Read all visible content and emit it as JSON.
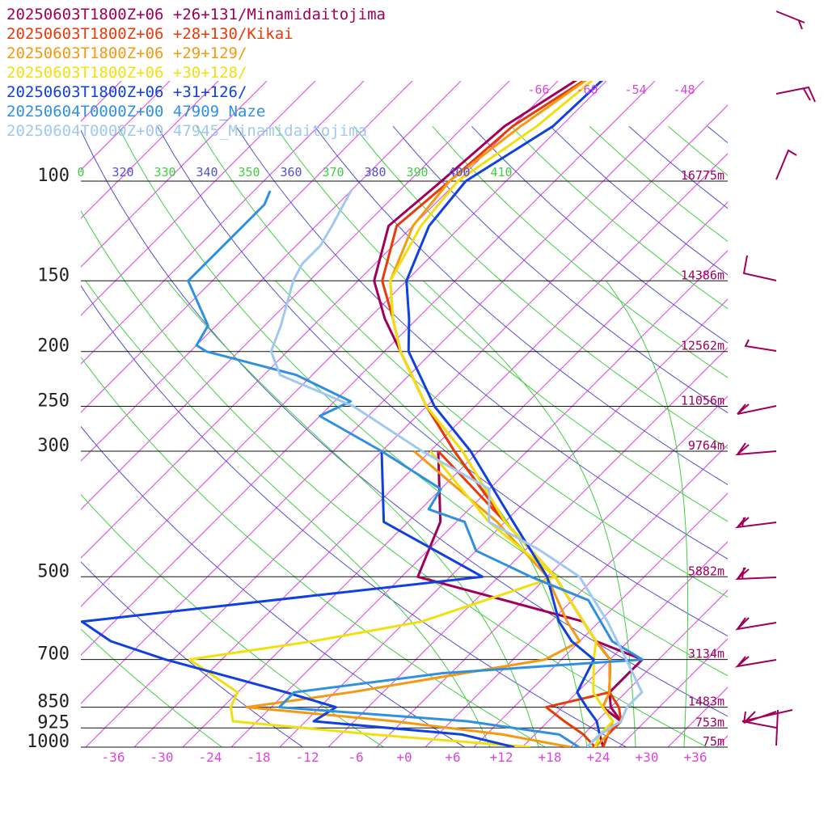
{
  "chart_data": {
    "type": "line",
    "title": "",
    "legend": [
      {
        "label": "20250603T1800Z+06 +26+131/Minamidaitojima",
        "color": "#a0005a"
      },
      {
        "label": "20250603T1800Z+06 +28+130/Kikai",
        "color": "#e83a0a"
      },
      {
        "label": "20250603T1800Z+06 +29+129/",
        "color": "#f59a10"
      },
      {
        "label": "20250603T1800Z+06 +30+128/",
        "color": "#f0e010"
      },
      {
        "label": "20250603T1800Z+06 +31+126/",
        "color": "#1040e0"
      },
      {
        "label": "20250604T0000Z+00 47909_Naze",
        "color": "#3090e0"
      },
      {
        "label": "20250604T0000Z+00 47945_Minamidaitojima",
        "color": "#a0c8f0"
      }
    ],
    "pressure_levels": [
      100,
      150,
      200,
      250,
      300,
      500,
      700,
      850,
      925,
      1000
    ],
    "pressure_labels": [
      "100",
      "150",
      "200",
      "250",
      "300",
      "500",
      "700",
      "850",
      "925",
      "1000"
    ],
    "height_labels": [
      {
        "p": 100,
        "label": "16775m"
      },
      {
        "p": 150,
        "label": "14386m"
      },
      {
        "p": 200,
        "label": "12562m"
      },
      {
        "p": 250,
        "label": "11056m"
      },
      {
        "p": 300,
        "label": "9764m"
      },
      {
        "p": 500,
        "label": "5882m"
      },
      {
        "p": 700,
        "label": "3134m"
      },
      {
        "p": 850,
        "label": "1483m"
      },
      {
        "p": 925,
        "label": "753m"
      },
      {
        "p": 1000,
        "label": "75m"
      }
    ],
    "x_ticks": [
      -36,
      -30,
      -24,
      -18,
      -12,
      -6,
      0,
      6,
      12,
      18,
      24,
      30,
      36
    ],
    "x_tick_labels": [
      "-36",
      "-30",
      "-24",
      "-18",
      "-12",
      "-6",
      "+0",
      "+6",
      "+12",
      "+18",
      "+24",
      "+30",
      "+36"
    ],
    "upper_isotherm_labels": [
      "-66",
      "-60",
      "-54",
      "-48"
    ],
    "theta_labels": [
      {
        "value": "0",
        "color": "#40d040"
      },
      {
        "value": "320",
        "color": "#5050d0"
      },
      {
        "value": "330",
        "color": "#40d040"
      },
      {
        "value": "340",
        "color": "#5050d0"
      },
      {
        "value": "350",
        "color": "#40d040"
      },
      {
        "value": "360",
        "color": "#5050d0"
      },
      {
        "value": "370",
        "color": "#40d040"
      },
      {
        "value": "380",
        "color": "#5050d0"
      },
      {
        "value": "390",
        "color": "#40d040"
      },
      {
        "value": "400",
        "color": "#5050d0"
      },
      {
        "value": "410",
        "color": "#40d040"
      }
    ],
    "series": [
      {
        "color": "#a0005a",
        "temperature": [
          [
            50,
            -57
          ],
          [
            80,
            -65
          ],
          [
            100,
            -66
          ],
          [
            120,
            -67
          ],
          [
            150,
            -62
          ],
          [
            175,
            -56
          ],
          [
            200,
            -50
          ],
          [
            250,
            -40
          ],
          [
            300,
            -31
          ],
          [
            400,
            -16
          ],
          [
            500,
            -3
          ],
          [
            600,
            6
          ],
          [
            650,
            10
          ],
          [
            700,
            14
          ],
          [
            800,
            18
          ],
          [
            850,
            20
          ],
          [
            900,
            23
          ],
          [
            950,
            23
          ],
          [
            1000,
            24
          ]
        ],
        "dewpoint": [
          [
            300,
            -33
          ],
          [
            400,
            -24
          ],
          [
            500,
            -20
          ],
          [
            600,
            6
          ],
          [
            650,
            10
          ],
          [
            700,
            18
          ],
          [
            800,
            18
          ],
          [
            850,
            19
          ],
          [
            900,
            23
          ],
          [
            950,
            22
          ],
          [
            1000,
            24
          ]
        ]
      },
      {
        "color": "#e83a0a",
        "temperature": [
          [
            50,
            -56
          ],
          [
            80,
            -64
          ],
          [
            100,
            -65
          ],
          [
            120,
            -66
          ],
          [
            150,
            -61
          ],
          [
            175,
            -55
          ],
          [
            200,
            -50
          ],
          [
            250,
            -40
          ],
          [
            300,
            -31
          ],
          [
            400,
            -16
          ],
          [
            500,
            -3
          ],
          [
            600,
            6
          ],
          [
            650,
            10
          ],
          [
            700,
            14
          ],
          [
            800,
            18
          ],
          [
            850,
            21
          ],
          [
            900,
            23
          ],
          [
            950,
            23
          ],
          [
            1000,
            24
          ]
        ],
        "dewpoint": [
          [
            300,
            -33
          ],
          [
            400,
            -16
          ],
          [
            500,
            -3
          ],
          [
            600,
            6
          ],
          [
            650,
            10
          ],
          [
            700,
            14
          ],
          [
            800,
            18
          ],
          [
            850,
            12
          ],
          [
            900,
            16
          ],
          [
            950,
            20
          ],
          [
            1000,
            23
          ]
        ]
      },
      {
        "color": "#f59a10",
        "temperature": [
          [
            50,
            -57
          ],
          [
            80,
            -63
          ],
          [
            100,
            -65
          ],
          [
            120,
            -64
          ],
          [
            150,
            -60
          ],
          [
            175,
            -55
          ],
          [
            200,
            -50
          ],
          [
            250,
            -40
          ],
          [
            300,
            -30
          ],
          [
            400,
            -16
          ],
          [
            500,
            -3
          ],
          [
            600,
            6
          ],
          [
            650,
            10
          ],
          [
            700,
            14
          ],
          [
            800,
            18
          ],
          [
            850,
            19
          ],
          [
            900,
            22
          ],
          [
            950,
            23
          ],
          [
            1000,
            23
          ]
        ],
        "dewpoint": [
          [
            300,
            -36
          ],
          [
            400,
            -17
          ],
          [
            500,
            -4
          ],
          [
            600,
            4
          ],
          [
            650,
            8
          ],
          [
            700,
            6
          ],
          [
            800,
            -14
          ],
          [
            850,
            -25
          ],
          [
            900,
            -5
          ],
          [
            950,
            10
          ],
          [
            1000,
            20
          ]
        ]
      },
      {
        "color": "#f0e010",
        "temperature": [
          [
            50,
            -58
          ],
          [
            80,
            -61
          ],
          [
            100,
            -64
          ],
          [
            120,
            -63
          ],
          [
            150,
            -60
          ],
          [
            175,
            -55
          ],
          [
            200,
            -50
          ],
          [
            250,
            -40
          ],
          [
            300,
            -30
          ],
          [
            400,
            -16
          ],
          [
            500,
            -3
          ],
          [
            600,
            6
          ],
          [
            650,
            10
          ],
          [
            700,
            12
          ],
          [
            800,
            16
          ],
          [
            850,
            19
          ],
          [
            900,
            22
          ],
          [
            950,
            22
          ],
          [
            1000,
            23
          ]
        ],
        "dewpoint": [
          [
            300,
            -34
          ],
          [
            400,
            -18
          ],
          [
            500,
            -3
          ],
          [
            600,
            -14
          ],
          [
            650,
            -25
          ],
          [
            700,
            -38
          ],
          [
            800,
            -28
          ],
          [
            850,
            -27
          ],
          [
            900,
            -25
          ],
          [
            950,
            -6
          ],
          [
            1000,
            15
          ]
        ]
      },
      {
        "color": "#1040e0",
        "temperature": [
          [
            50,
            -58
          ],
          [
            80,
            -59
          ],
          [
            100,
            -63
          ],
          [
            120,
            -62
          ],
          [
            150,
            -58
          ],
          [
            175,
            -53
          ],
          [
            200,
            -49
          ],
          [
            250,
            -39
          ],
          [
            300,
            -29
          ],
          [
            400,
            -15
          ],
          [
            500,
            -4
          ],
          [
            600,
            3
          ],
          [
            650,
            7
          ],
          [
            700,
            12
          ],
          [
            800,
            14
          ],
          [
            850,
            17
          ],
          [
            900,
            20
          ],
          [
            950,
            22
          ],
          [
            1000,
            22
          ]
        ],
        "dewpoint": [
          [
            300,
            -40
          ],
          [
            400,
            -31
          ],
          [
            500,
            -12
          ],
          [
            600,
            -56
          ],
          [
            650,
            -50
          ],
          [
            700,
            -41
          ],
          [
            800,
            -22
          ],
          [
            850,
            -14
          ],
          [
            900,
            -15
          ],
          [
            950,
            5
          ],
          [
            1000,
            13
          ]
        ]
      },
      {
        "color": "#3090e0",
        "temperature": [
          [
            104,
            -86
          ],
          [
            110,
            -85
          ],
          [
            120,
            -85
          ],
          [
            150,
            -85
          ],
          [
            180,
            -77
          ],
          [
            195,
            -76
          ],
          [
            200,
            -74
          ],
          [
            220,
            -60
          ],
          [
            245,
            -50
          ],
          [
            260,
            -52
          ],
          [
            300,
            -40
          ],
          [
            350,
            -28
          ],
          [
            380,
            -27
          ],
          [
            400,
            -21
          ],
          [
            450,
            -16
          ],
          [
            500,
            -6
          ],
          [
            550,
            4
          ],
          [
            650,
            12
          ],
          [
            700,
            18
          ],
          [
            740,
            -5
          ],
          [
            800,
            -21
          ],
          [
            830,
            -21
          ],
          [
            850,
            -21
          ],
          [
            900,
            4
          ],
          [
            950,
            17
          ],
          [
            1000,
            21
          ]
        ],
        "dewpoint": []
      },
      {
        "color": "#a0c8f0",
        "temperature": [
          [
            104,
            -76
          ],
          [
            120,
            -74
          ],
          [
            130,
            -73
          ],
          [
            140,
            -73
          ],
          [
            150,
            -72
          ],
          [
            180,
            -68
          ],
          [
            200,
            -66
          ],
          [
            220,
            -62
          ],
          [
            250,
            -49
          ],
          [
            300,
            -35
          ],
          [
            350,
            -22
          ],
          [
            400,
            -18
          ],
          [
            450,
            -8
          ],
          [
            500,
            0
          ],
          [
            600,
            9
          ],
          [
            700,
            16
          ],
          [
            800,
            22
          ],
          [
            850,
            22
          ],
          [
            900,
            23
          ],
          [
            950,
            22
          ],
          [
            1000,
            22
          ]
        ],
        "dewpoint": []
      }
    ],
    "wind_barbs_minamidaitojima": [
      "",
      "",
      "",
      "",
      "",
      "",
      "",
      "",
      "",
      "",
      ""
    ]
  }
}
